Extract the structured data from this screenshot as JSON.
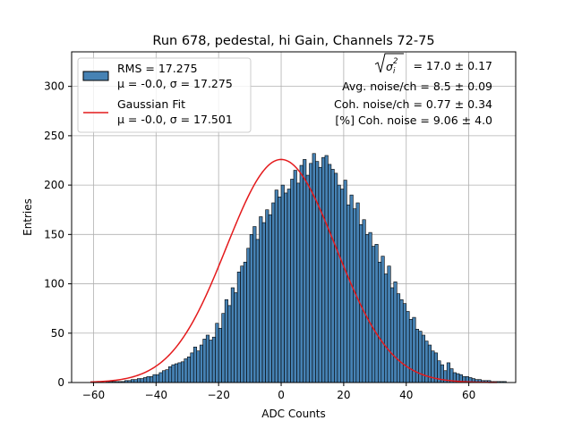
{
  "chart_data": {
    "type": "bar",
    "title": "Run 678, pedestal, hi Gain, Channels 72-75",
    "xlabel": "ADC Counts",
    "ylabel": "Entries",
    "xlim": [
      -67,
      75
    ],
    "ylim": [
      0,
      335
    ],
    "grid": true,
    "x_ticks": [
      -60,
      -40,
      -20,
      0,
      20,
      40,
      60
    ],
    "y_ticks": [
      0,
      50,
      100,
      150,
      200,
      250,
      300
    ],
    "x_tick_labels": [
      "−60",
      "−40",
      "−20",
      "0",
      "20",
      "40",
      "60"
    ],
    "y_tick_labels": [
      "0",
      "50",
      "100",
      "150",
      "200",
      "250",
      "300"
    ],
    "colors": {
      "bar_fill": "#4682b4",
      "bar_edge": "#000000",
      "fit_line": "#e41a1c",
      "grid": "#b0b0b0"
    },
    "histogram": {
      "bin_width": 1,
      "bin_edges_start": -61,
      "counts": [
        0,
        0,
        0,
        0,
        0,
        1,
        1,
        1,
        1,
        1,
        1,
        2,
        2,
        3,
        3,
        4,
        4,
        5,
        6,
        6,
        8,
        8,
        10,
        12,
        13,
        16,
        18,
        19,
        20,
        21,
        24,
        26,
        30,
        36,
        32,
        38,
        44,
        48,
        43,
        46,
        60,
        55,
        70,
        84,
        78,
        96,
        91,
        112,
        118,
        122,
        136,
        150,
        158,
        145,
        168,
        162,
        175,
        170,
        182,
        195,
        188,
        200,
        192,
        196,
        206,
        215,
        202,
        220,
        226,
        210,
        222,
        232,
        224,
        218,
        228,
        230,
        221,
        216,
        212,
        200,
        196,
        205,
        180,
        190,
        176,
        182,
        160,
        165,
        150,
        152,
        138,
        140,
        122,
        128,
        110,
        118,
        96,
        102,
        90,
        84,
        80,
        72,
        64,
        66,
        54,
        52,
        48,
        42,
        38,
        32,
        30,
        22,
        18,
        12,
        20,
        14,
        10,
        9,
        8,
        6,
        6,
        5,
        4,
        3,
        3,
        2,
        2,
        2,
        1,
        1,
        1,
        1,
        1,
        0,
        0
      ]
    },
    "series": [
      {
        "name": "RMS = 17.275\nμ = -0.0, σ = 17.275",
        "type": "histogram"
      },
      {
        "name": "Gaussian Fit\nμ = -0.0, σ = 17.501",
        "type": "line",
        "mu": 0.0,
        "sigma": 17.501,
        "amplitude": 226,
        "x_range": [
          -61,
          69
        ]
      }
    ],
    "legend": {
      "position": "top-left",
      "entries": [
        {
          "line1": "RMS = 17.275",
          "line2": "μ = -0.0, σ = 17.275"
        },
        {
          "line1": "Gaussian Fit",
          "line2": "μ = -0.0, σ = 17.501"
        }
      ]
    },
    "annotations": {
      "line1_value": "= 17.0 ± 0.17",
      "line2": "Avg. noise/ch = 8.5 ± 0.09",
      "line3": "Coh. noise/ch = 0.77 ± 0.34",
      "line4": "[%] Coh. noise = 9.06 ± 4.0"
    }
  }
}
